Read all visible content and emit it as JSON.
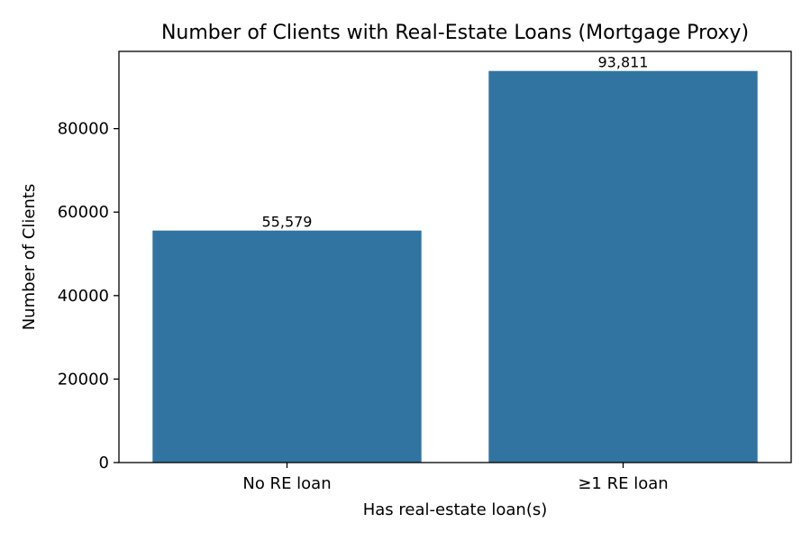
{
  "chart_data": {
    "type": "bar",
    "title": "Number of Clients with Real-Estate Loans (Mortgage Proxy)",
    "xlabel": "Has real-estate loan(s)",
    "ylabel": "Number of Clients",
    "categories": [
      "No RE loan",
      "≥1 RE loan"
    ],
    "values": [
      55579,
      93811
    ],
    "data_labels": [
      "55,579",
      "93,811"
    ],
    "yticks": [
      0,
      20000,
      40000,
      60000,
      80000
    ],
    "ytick_labels": [
      "0",
      "20000",
      "40000",
      "60000",
      "80000"
    ],
    "ylim": [
      0,
      98500
    ],
    "grid": false,
    "bar_color": "#3274a1"
  }
}
